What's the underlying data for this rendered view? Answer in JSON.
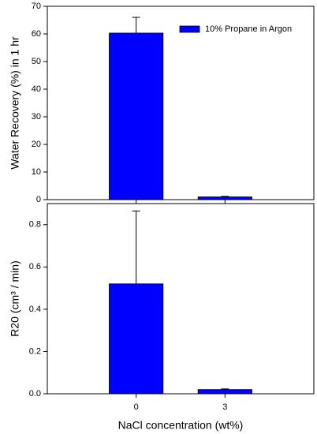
{
  "chart_data": [
    {
      "type": "bar",
      "ylabel": "Water Recovery (%) in 1 hr",
      "x": [
        0,
        3
      ],
      "xlim": [
        -3,
        6
      ],
      "xticks": [
        0,
        3
      ],
      "ylim": [
        0,
        70
      ],
      "yticks": [
        0,
        10,
        20,
        30,
        40,
        50,
        60,
        70
      ],
      "series": [
        {
          "name": "10% Propane in Argon",
          "color": "#0000ff",
          "values": [
            60.3,
            1.0
          ],
          "errors": [
            5.7,
            0.2
          ]
        }
      ]
    },
    {
      "type": "bar",
      "ylabel": "R20 (cm³ / min)",
      "xlabel": "NaCl concentration (wt%)",
      "x": [
        0,
        3
      ],
      "xlim": [
        -3,
        6
      ],
      "xticks": [
        0,
        3
      ],
      "ylim": [
        0,
        0.9
      ],
      "yticks": [
        {
          "value": 0,
          "label": "0.0"
        },
        0.2,
        0.4,
        0.6,
        0.8
      ],
      "series": [
        {
          "color": "#0000ff",
          "values": [
            0.52,
            0.02
          ],
          "errors": [
            0.345,
            0.003
          ]
        }
      ]
    }
  ]
}
